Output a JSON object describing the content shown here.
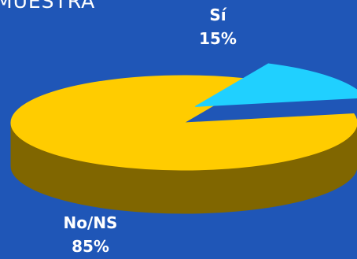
{
  "chart_data": {
    "type": "pie",
    "title": "MUESTRA",
    "slices": [
      {
        "label": "Sí",
        "value": 15,
        "value_text": "15%",
        "color": "#20d0ff",
        "side_color": "#12a2d0"
      },
      {
        "label": "No/NS",
        "value": 85,
        "value_text": "85%",
        "color": "#ffcc00",
        "side_color": "#806600"
      }
    ],
    "style": "3d-exploded"
  }
}
